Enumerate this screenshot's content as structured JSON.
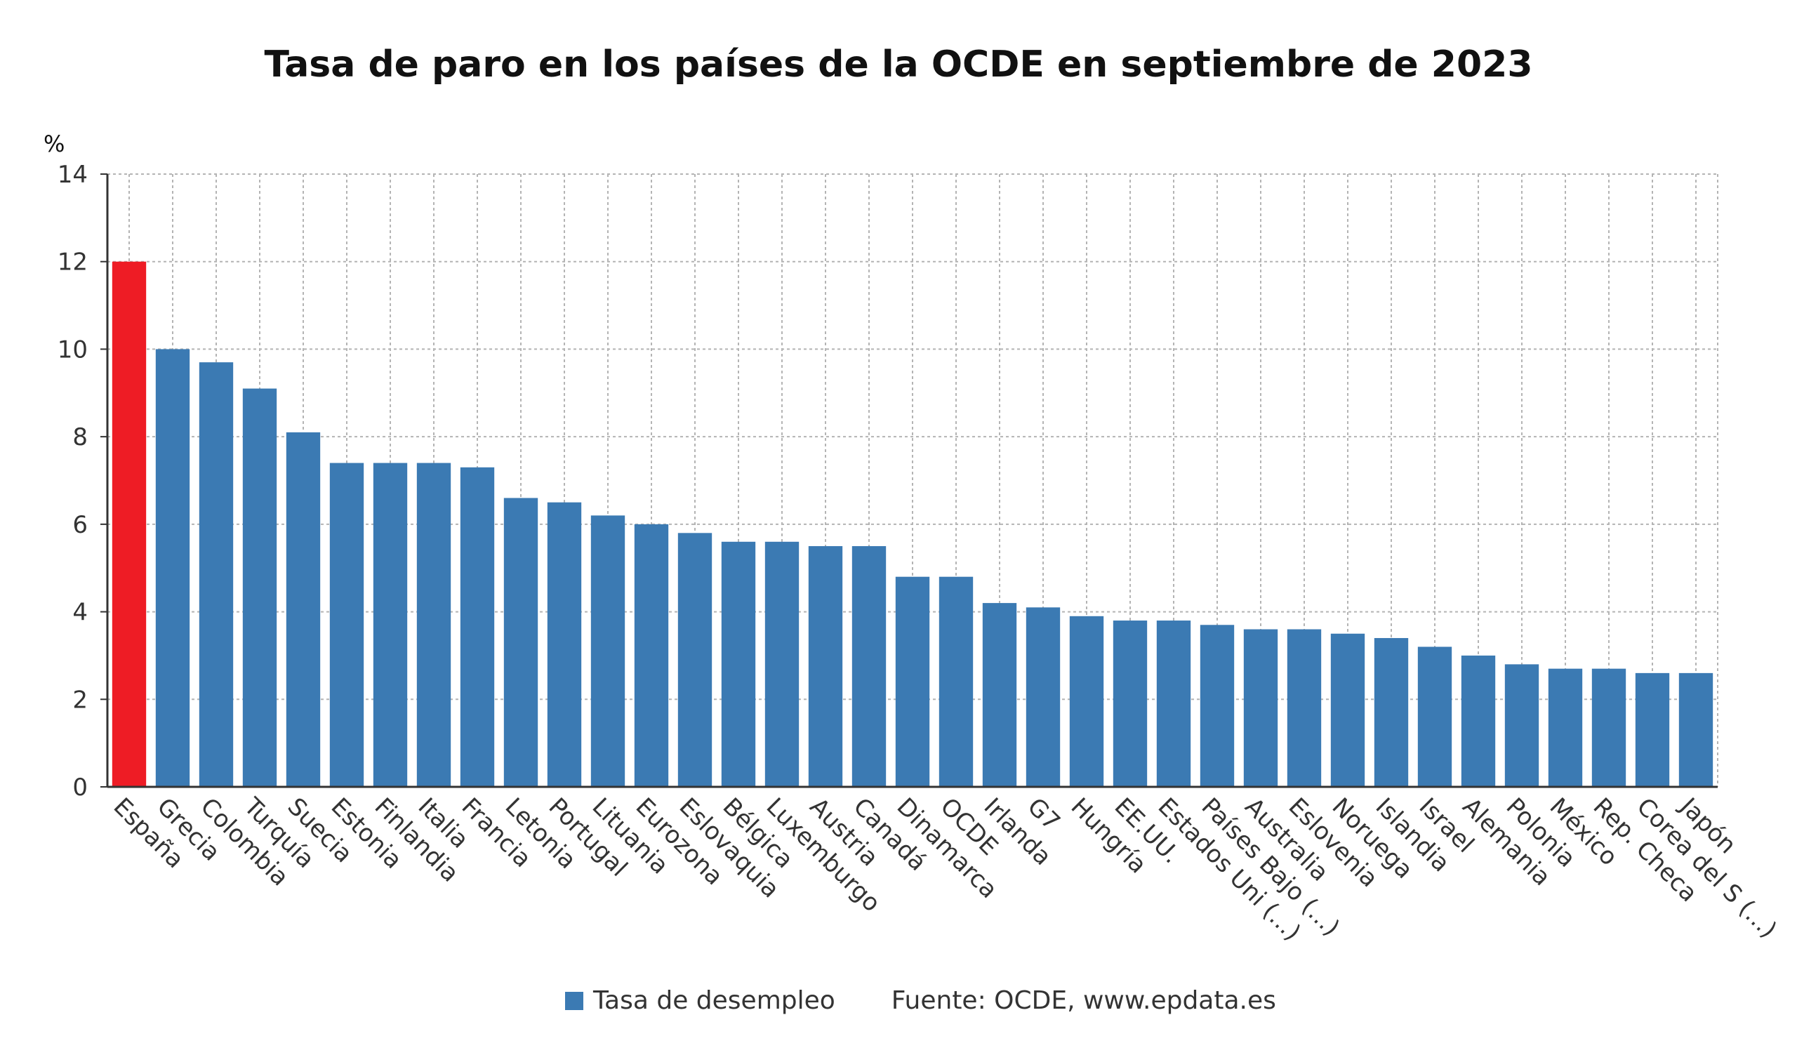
{
  "colors": {
    "bar": "#3b7ab3",
    "highlight": "#ee1c25",
    "grid": "#b4b4b4",
    "axis": "#333333"
  },
  "legend": {
    "series_label": "Tasa de desempleo",
    "source": "Fuente: OCDE, www.epdata.es"
  },
  "chart_data": {
    "type": "bar",
    "title": "Tasa de paro en los países de la OCDE en septiembre de 2023",
    "ylabel": "%",
    "xlabel": "",
    "ylim": [
      0,
      14
    ],
    "yticks": [
      0,
      2,
      4,
      6,
      8,
      10,
      12,
      14
    ],
    "grid": true,
    "highlight_index": 0,
    "categories": [
      "España",
      "Grecia",
      "Colombia",
      "Turquía",
      "Suecia",
      "Estonia",
      "Finlandia",
      "Italia",
      "Francia",
      "Letonia",
      "Portugal",
      "Lituania",
      "Eurozona",
      "Eslovaquia",
      "Bélgica",
      "Luxemburgo",
      "Austria",
      "Canadá",
      "Dinamarca",
      "OCDE",
      "Irlanda",
      "G7",
      "Hungría",
      "EE.UU.",
      "Estados Uni (...)",
      "Países Bajo (...)",
      "Australia",
      "Eslovenia",
      "Noruega",
      "Islandia",
      "Israel",
      "Alemania",
      "Polonia",
      "México",
      "Rep. Checa",
      "Corea del S (...)",
      "Japón"
    ],
    "series": [
      {
        "name": "Tasa de desempleo",
        "values": [
          12.0,
          10.0,
          9.7,
          9.1,
          8.1,
          7.4,
          7.4,
          7.4,
          7.3,
          6.6,
          6.5,
          6.2,
          6.0,
          5.8,
          5.6,
          5.6,
          5.5,
          5.5,
          4.8,
          4.8,
          4.2,
          4.1,
          3.9,
          3.8,
          3.8,
          3.7,
          3.6,
          3.6,
          3.5,
          3.4,
          3.2,
          3.0,
          2.8,
          2.7,
          2.7,
          2.6,
          2.6
        ]
      }
    ]
  }
}
